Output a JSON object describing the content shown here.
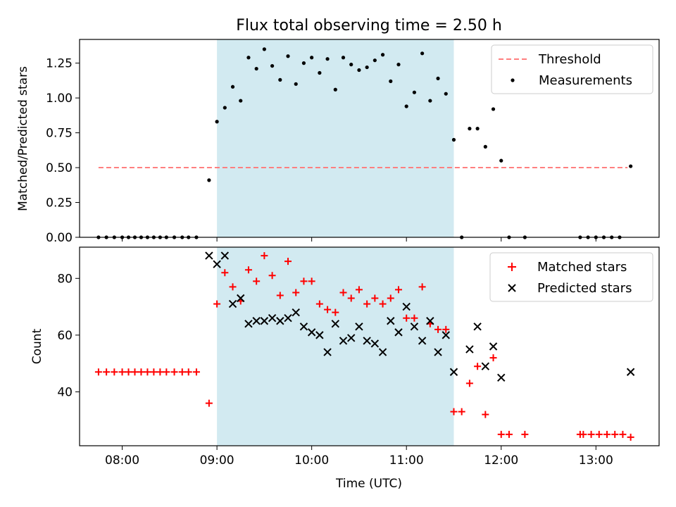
{
  "chart_data": [
    {
      "type": "scatter",
      "title": "Flux total observing time = 2.50 h",
      "xlabel": "",
      "ylabel": "Matched/Predicted stars",
      "xlim": [
        "07:33",
        "13:40"
      ],
      "ylim": [
        0,
        1.42
      ],
      "ytick_values": [
        0,
        0.25,
        0.5,
        0.75,
        1.0,
        1.25
      ],
      "ytick_labels": [
        "0.00",
        "0.25",
        "0.50",
        "0.75",
        "1.00",
        "1.25"
      ],
      "shaded_interval": [
        "09:00",
        "11:30"
      ],
      "shade_color": "#add8e6",
      "legend_position": "upper right",
      "series": [
        {
          "name": "Threshold",
          "kind": "dashed-line",
          "color": "#ff7f7f",
          "points": [
            [
              "07:45",
              0.5
            ],
            [
              "13:20",
              0.5
            ]
          ]
        },
        {
          "name": "Measurements",
          "kind": "dots",
          "color": "#000000",
          "points": [
            [
              "07:45",
              0
            ],
            [
              "07:50",
              0
            ],
            [
              "07:55",
              0
            ],
            [
              "08:00",
              0
            ],
            [
              "08:04",
              0
            ],
            [
              "08:08",
              0
            ],
            [
              "08:12",
              0
            ],
            [
              "08:16",
              0
            ],
            [
              "08:20",
              0
            ],
            [
              "08:24",
              0
            ],
            [
              "08:28",
              0
            ],
            [
              "08:33",
              0
            ],
            [
              "08:38",
              0
            ],
            [
              "08:42",
              0
            ],
            [
              "08:47",
              0
            ],
            [
              "08:55",
              0.41
            ],
            [
              "09:00",
              0.83
            ],
            [
              "09:05",
              0.93
            ],
            [
              "09:10",
              1.08
            ],
            [
              "09:15",
              0.98
            ],
            [
              "09:20",
              1.29
            ],
            [
              "09:25",
              1.21
            ],
            [
              "09:30",
              1.35
            ],
            [
              "09:35",
              1.23
            ],
            [
              "09:40",
              1.13
            ],
            [
              "09:45",
              1.3
            ],
            [
              "09:50",
              1.1
            ],
            [
              "09:55",
              1.25
            ],
            [
              "10:00",
              1.29
            ],
            [
              "10:05",
              1.18
            ],
            [
              "10:10",
              1.28
            ],
            [
              "10:15",
              1.06
            ],
            [
              "10:20",
              1.29
            ],
            [
              "10:25",
              1.24
            ],
            [
              "10:30",
              1.2
            ],
            [
              "10:35",
              1.22
            ],
            [
              "10:40",
              1.27
            ],
            [
              "10:45",
              1.31
            ],
            [
              "10:50",
              1.12
            ],
            [
              "10:55",
              1.24
            ],
            [
              "11:00",
              0.94
            ],
            [
              "11:05",
              1.04
            ],
            [
              "11:10",
              1.32
            ],
            [
              "11:15",
              0.98
            ],
            [
              "11:20",
              1.14
            ],
            [
              "11:25",
              1.03
            ],
            [
              "11:30",
              0.7
            ],
            [
              "11:35",
              0
            ],
            [
              "11:40",
              0.78
            ],
            [
              "11:45",
              0.78
            ],
            [
              "11:50",
              0.65
            ],
            [
              "11:55",
              0.92
            ],
            [
              "12:00",
              0.55
            ],
            [
              "12:05",
              0
            ],
            [
              "12:15",
              0
            ],
            [
              "12:50",
              0
            ],
            [
              "12:55",
              0
            ],
            [
              "13:00",
              0
            ],
            [
              "13:05",
              0
            ],
            [
              "13:10",
              0
            ],
            [
              "13:15",
              0
            ],
            [
              "13:22",
              0.51
            ]
          ]
        }
      ]
    },
    {
      "type": "scatter",
      "title": "",
      "xlabel": "Time (UTC)",
      "ylabel": "Count",
      "xlim": [
        "07:33",
        "13:40"
      ],
      "ylim": [
        21,
        91
      ],
      "ytick_values": [
        40,
        60,
        80
      ],
      "ytick_labels": [
        "40",
        "60",
        "80"
      ],
      "xtick_values": [
        "08:00",
        "09:00",
        "10:00",
        "11:00",
        "12:00",
        "13:00"
      ],
      "xtick_labels": [
        "08:00",
        "09:00",
        "10:00",
        "11:00",
        "12:00",
        "13:00"
      ],
      "shaded_interval": [
        "09:00",
        "11:30"
      ],
      "shade_color": "#add8e6",
      "legend_position": "upper right",
      "series": [
        {
          "name": "Matched stars",
          "kind": "plus",
          "color": "#ff0000",
          "points": [
            [
              "07:45",
              47
            ],
            [
              "07:50",
              47
            ],
            [
              "07:55",
              47
            ],
            [
              "08:00",
              47
            ],
            [
              "08:04",
              47
            ],
            [
              "08:08",
              47
            ],
            [
              "08:12",
              47
            ],
            [
              "08:16",
              47
            ],
            [
              "08:20",
              47
            ],
            [
              "08:24",
              47
            ],
            [
              "08:28",
              47
            ],
            [
              "08:33",
              47
            ],
            [
              "08:38",
              47
            ],
            [
              "08:42",
              47
            ],
            [
              "08:47",
              47
            ],
            [
              "08:55",
              36
            ],
            [
              "09:00",
              71
            ],
            [
              "09:05",
              82
            ],
            [
              "09:10",
              77
            ],
            [
              "09:15",
              72
            ],
            [
              "09:20",
              83
            ],
            [
              "09:25",
              79
            ],
            [
              "09:30",
              88
            ],
            [
              "09:35",
              81
            ],
            [
              "09:40",
              74
            ],
            [
              "09:45",
              86
            ],
            [
              "09:50",
              75
            ],
            [
              "09:55",
              79
            ],
            [
              "10:00",
              79
            ],
            [
              "10:05",
              71
            ],
            [
              "10:10",
              69
            ],
            [
              "10:15",
              68
            ],
            [
              "10:20",
              75
            ],
            [
              "10:25",
              73
            ],
            [
              "10:30",
              76
            ],
            [
              "10:35",
              71
            ],
            [
              "10:40",
              73
            ],
            [
              "10:45",
              71
            ],
            [
              "10:50",
              73
            ],
            [
              "10:55",
              76
            ],
            [
              "11:00",
              66
            ],
            [
              "11:05",
              66
            ],
            [
              "11:10",
              77
            ],
            [
              "11:15",
              64
            ],
            [
              "11:20",
              62
            ],
            [
              "11:25",
              62
            ],
            [
              "11:30",
              33
            ],
            [
              "11:35",
              33
            ],
            [
              "11:40",
              43
            ],
            [
              "11:45",
              49
            ],
            [
              "11:50",
              32
            ],
            [
              "11:55",
              52
            ],
            [
              "12:00",
              25
            ],
            [
              "12:05",
              25
            ],
            [
              "12:15",
              25
            ],
            [
              "12:50",
              25
            ],
            [
              "12:52",
              25
            ],
            [
              "12:57",
              25
            ],
            [
              "13:02",
              25
            ],
            [
              "13:07",
              25
            ],
            [
              "13:12",
              25
            ],
            [
              "13:17",
              25
            ],
            [
              "13:22",
              24
            ]
          ]
        },
        {
          "name": "Predicted stars",
          "kind": "cross",
          "color": "#000000",
          "points": [
            [
              "08:55",
              88
            ],
            [
              "09:00",
              85
            ],
            [
              "09:05",
              88
            ],
            [
              "09:10",
              71
            ],
            [
              "09:15",
              73
            ],
            [
              "09:20",
              64
            ],
            [
              "09:25",
              65
            ],
            [
              "09:30",
              65
            ],
            [
              "09:35",
              66
            ],
            [
              "09:40",
              65
            ],
            [
              "09:45",
              66
            ],
            [
              "09:50",
              68
            ],
            [
              "09:55",
              63
            ],
            [
              "10:00",
              61
            ],
            [
              "10:05",
              60
            ],
            [
              "10:10",
              54
            ],
            [
              "10:15",
              64
            ],
            [
              "10:20",
              58
            ],
            [
              "10:25",
              59
            ],
            [
              "10:30",
              63
            ],
            [
              "10:35",
              58
            ],
            [
              "10:40",
              57
            ],
            [
              "10:45",
              54
            ],
            [
              "10:50",
              65
            ],
            [
              "10:55",
              61
            ],
            [
              "11:00",
              70
            ],
            [
              "11:05",
              63
            ],
            [
              "11:10",
              58
            ],
            [
              "11:15",
              65
            ],
            [
              "11:20",
              54
            ],
            [
              "11:25",
              60
            ],
            [
              "11:30",
              47
            ],
            [
              "11:40",
              55
            ],
            [
              "11:45",
              63
            ],
            [
              "11:50",
              49
            ],
            [
              "11:55",
              56
            ],
            [
              "12:00",
              45
            ],
            [
              "13:22",
              47
            ]
          ]
        }
      ]
    }
  ]
}
